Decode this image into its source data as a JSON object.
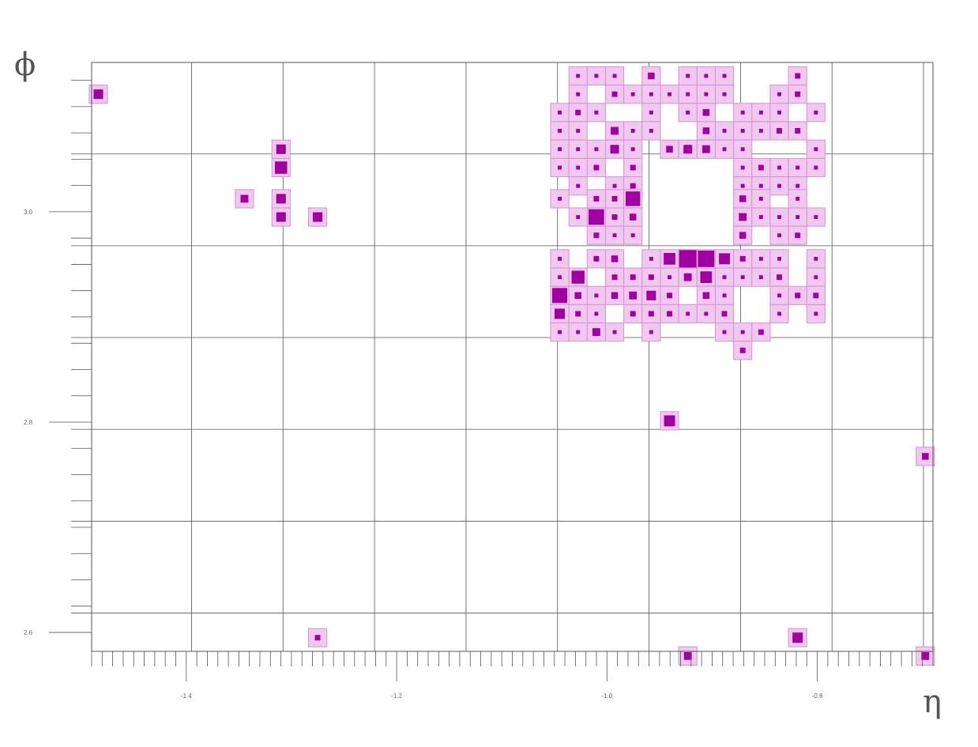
{
  "chart_data": {
    "type": "heatmap",
    "title": "",
    "xlabel": "η",
    "ylabel": "ϕ",
    "xlim": [
      -1.49,
      -0.69
    ],
    "ylim": [
      2.582,
      3.142
    ],
    "x_major_ticks": [
      -1.4,
      -1.2,
      -1.0,
      -0.8
    ],
    "y_major_ticks": [
      2.6,
      2.8,
      3.0
    ],
    "x_tick_labels": [
      "-1.4",
      "-1.2",
      "-1.0",
      "-0.8"
    ],
    "y_tick_labels": [
      "2.6",
      "2.8",
      "3.0"
    ],
    "grid": true,
    "cell_width": 0.0174,
    "cell_height": 0.0174,
    "cells_note_units": "[eta, phi, weight]",
    "cells": [
      [
        -1.4836,
        3.1118,
        0.3
      ],
      [
        -1.3099,
        3.042,
        0.5
      ],
      [
        -1.3099,
        3.0595,
        0.3
      ],
      [
        -1.3447,
        3.0124,
        0.2
      ],
      [
        -1.3099,
        3.0124,
        0.3
      ],
      [
        -1.3099,
        2.995,
        0.3
      ],
      [
        -1.2751,
        2.995,
        0.3
      ],
      [
        -1.2751,
        2.595,
        0.1
      ],
      [
        -1.0275,
        3.1292,
        0.05
      ],
      [
        -1.0101,
        3.1292,
        0.05
      ],
      [
        -0.9927,
        3.1292,
        0.05
      ],
      [
        -0.9579,
        3.1292,
        0.15
      ],
      [
        -0.9231,
        3.1292,
        0.05
      ],
      [
        -0.9057,
        3.1292,
        0.05
      ],
      [
        -0.8883,
        3.1292,
        0.05
      ],
      [
        -0.8187,
        3.1292,
        0.1
      ],
      [
        -1.0275,
        3.1118,
        0.05
      ],
      [
        -0.9927,
        3.1118,
        0.1
      ],
      [
        -0.9753,
        3.1118,
        0.05
      ],
      [
        -0.9579,
        3.1118,
        0.05
      ],
      [
        -0.9405,
        3.1118,
        0.05
      ],
      [
        -0.9231,
        3.1118,
        0.05
      ],
      [
        -0.9057,
        3.1118,
        0.05
      ],
      [
        -0.8883,
        3.1118,
        0.05
      ],
      [
        -0.8361,
        3.1118,
        0.05
      ],
      [
        -0.8187,
        3.1118,
        0.1
      ],
      [
        -1.0449,
        3.0944,
        0.05
      ],
      [
        -1.0275,
        3.0944,
        0.1
      ],
      [
        -1.0101,
        3.0944,
        0.05
      ],
      [
        -0.9579,
        3.0944,
        0.05
      ],
      [
        -0.9231,
        3.0944,
        0.05
      ],
      [
        -0.9057,
        3.0944,
        0.15
      ],
      [
        -0.8709,
        3.0944,
        0.05
      ],
      [
        -0.8535,
        3.0944,
        0.05
      ],
      [
        -0.8361,
        3.0944,
        0.05
      ],
      [
        -0.8013,
        3.0944,
        0.05
      ],
      [
        -1.0449,
        3.077,
        0.05
      ],
      [
        -1.0275,
        3.077,
        0.05
      ],
      [
        -0.9927,
        3.077,
        0.2
      ],
      [
        -0.9753,
        3.077,
        0.05
      ],
      [
        -0.9579,
        3.077,
        0.05
      ],
      [
        -0.9057,
        3.077,
        0.15
      ],
      [
        -0.8883,
        3.077,
        0.05
      ],
      [
        -0.8709,
        3.077,
        0.05
      ],
      [
        -0.8535,
        3.077,
        0.05
      ],
      [
        -0.8361,
        3.077,
        0.1
      ],
      [
        -0.8187,
        3.077,
        0.1
      ],
      [
        -1.0449,
        3.0595,
        0.05
      ],
      [
        -1.0275,
        3.0595,
        0.05
      ],
      [
        -1.0101,
        3.0595,
        0.05
      ],
      [
        -0.9927,
        3.0595,
        0.25
      ],
      [
        -0.9753,
        3.0595,
        0.05
      ],
      [
        -0.9405,
        3.0595,
        0.15
      ],
      [
        -0.9231,
        3.0595,
        0.25
      ],
      [
        -0.9057,
        3.0595,
        0.2
      ],
      [
        -0.8883,
        3.0595,
        0.05
      ],
      [
        -0.8709,
        3.0595,
        0.05
      ],
      [
        -0.8013,
        3.0595,
        0.05
      ],
      [
        -1.0449,
        3.042,
        0.05
      ],
      [
        -1.0275,
        3.042,
        0.05
      ],
      [
        -1.0101,
        3.042,
        0.1
      ],
      [
        -0.9753,
        3.042,
        0.1
      ],
      [
        -0.8709,
        3.042,
        0.05
      ],
      [
        -0.8535,
        3.042,
        0.1
      ],
      [
        -0.8361,
        3.042,
        0.05
      ],
      [
        -0.8187,
        3.042,
        0.05
      ],
      [
        -0.8013,
        3.042,
        0.05
      ],
      [
        -1.0275,
        3.0246,
        0.05
      ],
      [
        -0.9927,
        3.0246,
        0.05
      ],
      [
        -0.9753,
        3.0246,
        0.1
      ],
      [
        -0.8709,
        3.0246,
        0.05
      ],
      [
        -0.8535,
        3.0246,
        0.05
      ],
      [
        -0.8361,
        3.0246,
        0.05
      ],
      [
        -0.8187,
        3.0246,
        0.05
      ],
      [
        -1.0449,
        3.0124,
        0.05
      ],
      [
        -1.0101,
        3.0124,
        0.1
      ],
      [
        -0.9927,
        3.0124,
        0.1
      ],
      [
        -0.9753,
        3.0124,
        0.7
      ],
      [
        -0.8709,
        3.0124,
        0.15
      ],
      [
        -0.8535,
        3.0124,
        0.05
      ],
      [
        -0.8187,
        3.0124,
        0.05
      ],
      [
        -1.0275,
        2.995,
        0.05
      ],
      [
        -1.0101,
        2.995,
        0.8
      ],
      [
        -0.9927,
        2.995,
        0.1
      ],
      [
        -0.9753,
        2.995,
        0.15
      ],
      [
        -0.8709,
        2.995,
        0.2
      ],
      [
        -0.8535,
        2.995,
        0.05
      ],
      [
        -0.8361,
        2.995,
        0.05
      ],
      [
        -0.8187,
        2.995,
        0.05
      ],
      [
        -0.8013,
        2.995,
        0.05
      ],
      [
        -1.0101,
        2.9776,
        0.1
      ],
      [
        -0.9927,
        2.9776,
        0.05
      ],
      [
        -0.9753,
        2.9776,
        0.05
      ],
      [
        -0.8709,
        2.9776,
        0.15
      ],
      [
        -0.8361,
        2.9776,
        0.05
      ],
      [
        -0.8187,
        2.9776,
        0.1
      ],
      [
        -1.0449,
        2.9553,
        0.05
      ],
      [
        -1.0101,
        2.9553,
        0.1
      ],
      [
        -0.9927,
        2.9553,
        0.15
      ],
      [
        -0.9579,
        2.9553,
        0.05
      ],
      [
        -0.9405,
        2.9553,
        0.45
      ],
      [
        -0.9231,
        2.9553,
        1.0
      ],
      [
        -0.9057,
        2.9553,
        0.9
      ],
      [
        -0.8883,
        2.9553,
        0.4
      ],
      [
        -0.8709,
        2.9553,
        0.1
      ],
      [
        -0.8535,
        2.9553,
        0.05
      ],
      [
        -0.8361,
        2.9553,
        0.05
      ],
      [
        -0.8013,
        2.9553,
        0.05
      ],
      [
        -1.0449,
        2.9378,
        0.05
      ],
      [
        -1.0275,
        2.9378,
        0.55
      ],
      [
        -0.9927,
        2.9378,
        0.1
      ],
      [
        -0.9753,
        2.9378,
        0.1
      ],
      [
        -0.9579,
        2.9378,
        0.1
      ],
      [
        -0.9405,
        2.9378,
        0.05
      ],
      [
        -0.9231,
        2.9378,
        0.2
      ],
      [
        -0.9057,
        2.9378,
        0.45
      ],
      [
        -0.8883,
        2.9378,
        0.05
      ],
      [
        -0.8709,
        2.9378,
        0.05
      ],
      [
        -0.8535,
        2.9378,
        0.05
      ],
      [
        -0.8361,
        2.9378,
        0.1
      ],
      [
        -0.8013,
        2.9378,
        0.05
      ],
      [
        -1.0449,
        2.9204,
        0.75
      ],
      [
        -1.0275,
        2.9204,
        0.15
      ],
      [
        -1.0101,
        2.9204,
        0.05
      ],
      [
        -0.9927,
        2.9204,
        0.15
      ],
      [
        -0.9753,
        2.9204,
        0.2
      ],
      [
        -0.9579,
        2.9204,
        0.3
      ],
      [
        -0.9405,
        2.9204,
        0.1
      ],
      [
        -0.9057,
        2.9204,
        0.15
      ],
      [
        -0.8883,
        2.9204,
        0.05
      ],
      [
        -0.8361,
        2.9204,
        0.05
      ],
      [
        -0.8187,
        2.9204,
        0.1
      ],
      [
        -0.8013,
        2.9204,
        0.1
      ],
      [
        -1.0449,
        2.903,
        0.35
      ],
      [
        -1.0275,
        2.903,
        0.1
      ],
      [
        -1.0101,
        2.903,
        0.05
      ],
      [
        -0.9753,
        2.903,
        0.1
      ],
      [
        -0.9579,
        2.903,
        0.1
      ],
      [
        -0.9405,
        2.903,
        0.1
      ],
      [
        -0.9231,
        2.903,
        0.05
      ],
      [
        -0.9057,
        2.903,
        0.05
      ],
      [
        -0.8883,
        2.903,
        0.1
      ],
      [
        -0.8361,
        2.903,
        0.05
      ],
      [
        -0.8013,
        2.903,
        0.05
      ],
      [
        -1.0449,
        2.8856,
        0.05
      ],
      [
        -1.0275,
        2.8856,
        0.05
      ],
      [
        -1.0101,
        2.8856,
        0.2
      ],
      [
        -0.9927,
        2.8856,
        0.05
      ],
      [
        -0.9579,
        2.8856,
        0.05
      ],
      [
        -0.8883,
        2.8856,
        0.05
      ],
      [
        -0.8709,
        2.8856,
        0.05
      ],
      [
        -0.8535,
        2.8856,
        0.1
      ],
      [
        -0.8709,
        2.8682,
        0.1
      ],
      [
        -0.9405,
        2.8012,
        0.4
      ],
      [
        -0.6973,
        2.7674,
        0.15
      ],
      [
        -0.8187,
        2.595,
        0.35
      ],
      [
        -0.9231,
        2.5776,
        0.2
      ],
      [
        -0.6973,
        2.5776,
        0.2
      ]
    ]
  }
}
